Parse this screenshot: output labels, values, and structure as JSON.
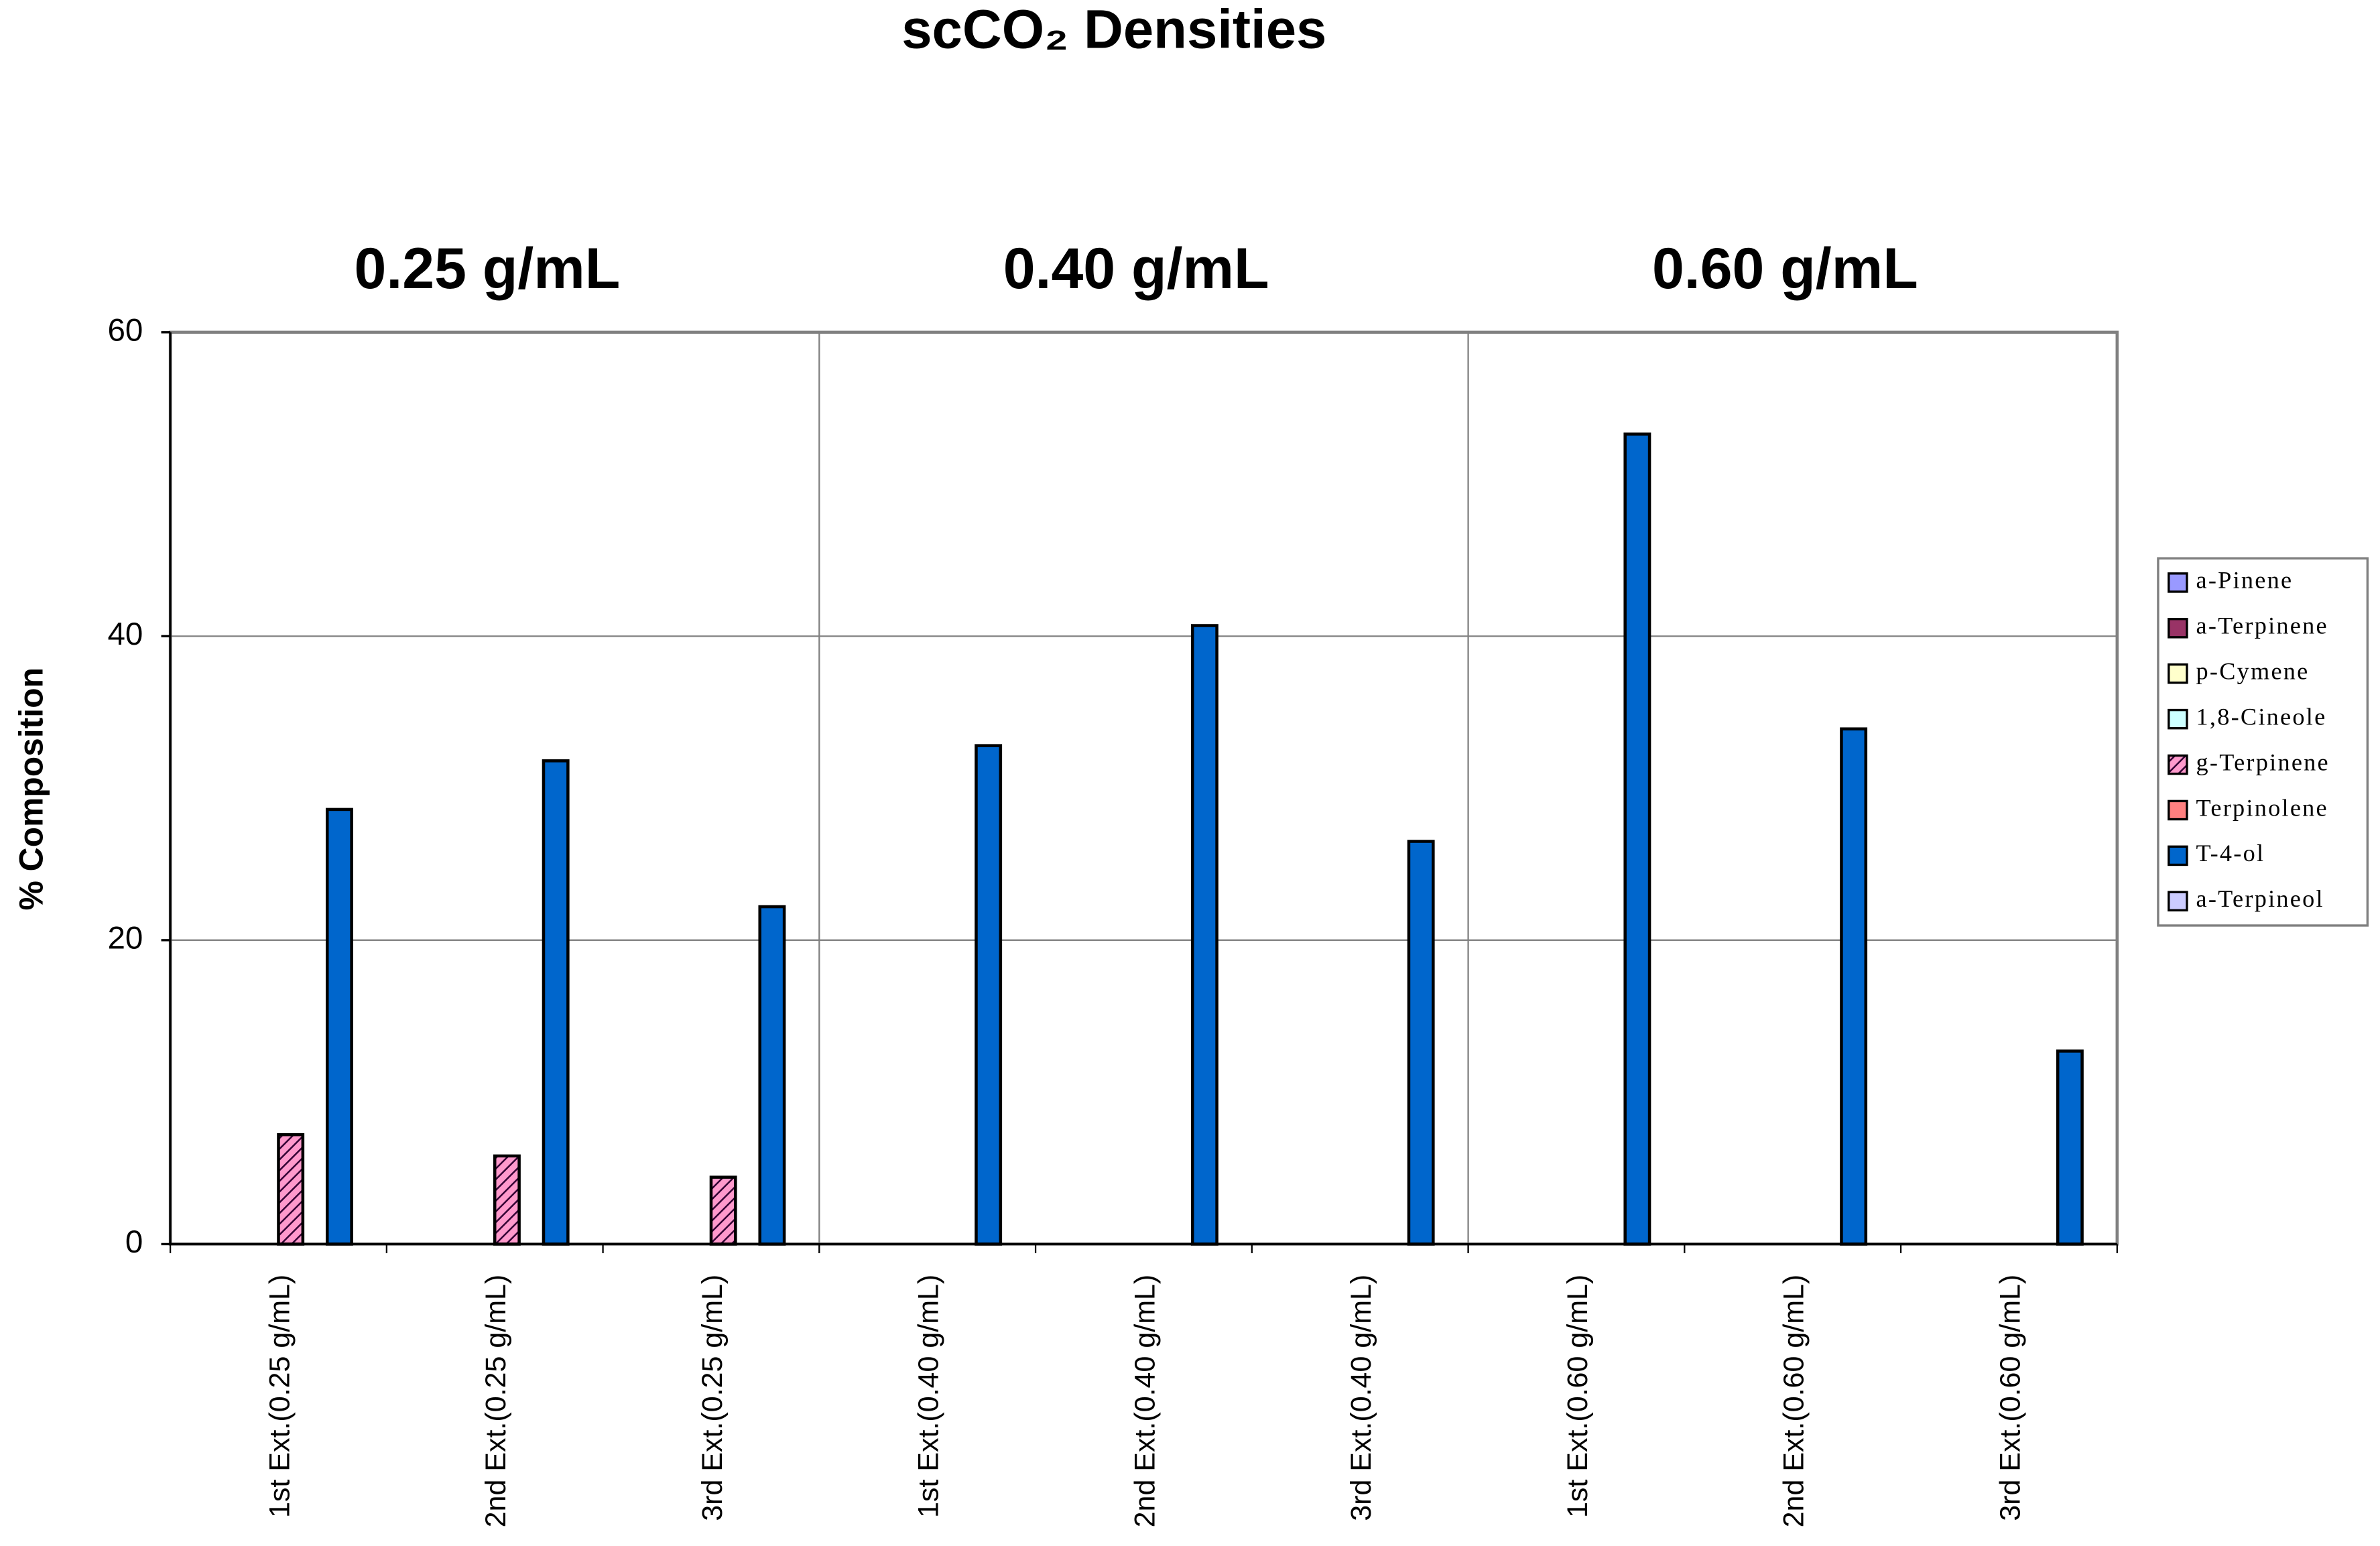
{
  "chart_data": {
    "type": "bar",
    "title": "scCO₂ Densities",
    "annotations": [
      "0.25 g/mL",
      "0.40 g/mL",
      "0.60 g/mL"
    ],
    "y_label": "% Composition",
    "categories": [
      "1st Ext.(0.25 g/mL)",
      "2nd Ext.(0.25 g/mL)",
      "3rd Ext.(0.25 g/mL)",
      "1st Ext.(0.40 g/mL)",
      "2nd Ext.(0.40 g/mL)",
      "3rd Ext.(0.40 g/mL)",
      "1st Ext.(0.60 g/mL)",
      "2nd Ext.(0.60 g/mL)",
      "3rd Ext.(0.60 g/mL)"
    ],
    "series": [
      {
        "name": "a-Pinene",
        "color": "#9999ff",
        "values": [
          0,
          0,
          0,
          0,
          0,
          0,
          0,
          0,
          0
        ]
      },
      {
        "name": "a-Terpinene",
        "color": "#993366",
        "values": [
          0,
          0,
          0,
          0,
          0,
          0,
          0,
          0,
          0
        ]
      },
      {
        "name": "p-Cymene",
        "color": "#ffffcc",
        "values": [
          0,
          0,
          0,
          0,
          0,
          0,
          0,
          0,
          0
        ]
      },
      {
        "name": "1,8-Cineole",
        "color": "#ccffff",
        "values": [
          0,
          0,
          0,
          0,
          0,
          0,
          0,
          0,
          0
        ]
      },
      {
        "name": "g-Terpinene",
        "color": "#ff99cc",
        "hatch": true,
        "values": [
          7.2,
          5.8,
          4.4,
          0,
          0,
          0,
          0,
          0,
          0
        ]
      },
      {
        "name": "Terpinolene",
        "color": "#ff8080",
        "values": [
          0,
          0,
          0,
          0,
          0,
          0,
          0,
          0,
          0
        ]
      },
      {
        "name": "T-4-ol",
        "color": "#0066cc",
        "values": [
          28.6,
          31.8,
          22.2,
          32.8,
          40.7,
          26.5,
          53.3,
          33.9,
          12.7
        ]
      },
      {
        "name": "a-Terpineol",
        "color": "#ccccff",
        "values": [
          0,
          0,
          0,
          0,
          0,
          0,
          0,
          0,
          0
        ]
      }
    ],
    "ylim": [
      0,
      60
    ],
    "yticks": [
      0,
      20,
      40,
      60
    ],
    "grid": true,
    "legend": "right"
  }
}
